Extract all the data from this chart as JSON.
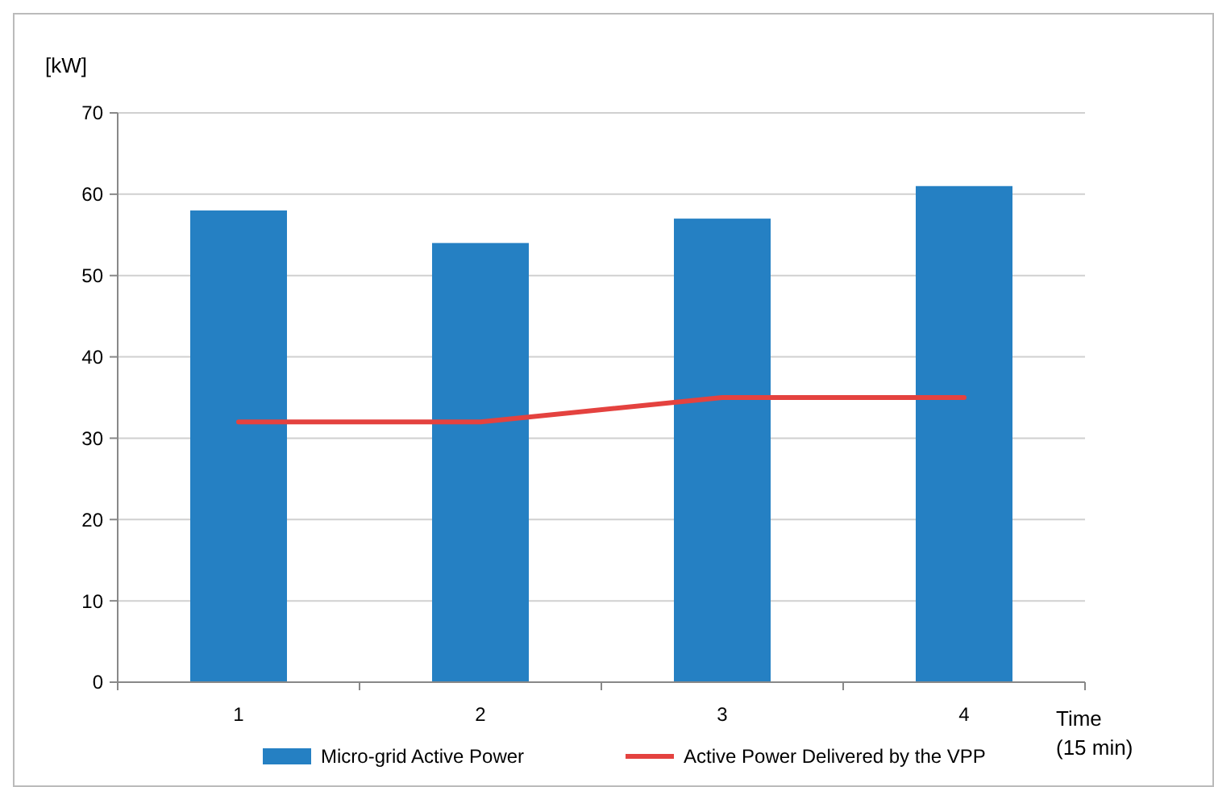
{
  "chart_data": {
    "type": "bar",
    "ylabel": "[kW]",
    "xlabel": "Time\n(15 min)",
    "categories": [
      "1",
      "2",
      "3",
      "4"
    ],
    "series": [
      {
        "name": "Micro-grid Active Power",
        "color": "#2580c3",
        "values": [
          58,
          54,
          57,
          61
        ]
      },
      {
        "name": "Active Power Delivered by the VPP",
        "type": "line",
        "color": "#e4423f",
        "values": [
          32,
          32,
          35,
          35
        ]
      }
    ],
    "ylim": [
      0,
      70
    ],
    "yticks": [
      0,
      10,
      20,
      30,
      40,
      50,
      60,
      70
    ],
    "grid": "y",
    "legend": "bottom",
    "marker": "none",
    "line_style": "solid"
  }
}
